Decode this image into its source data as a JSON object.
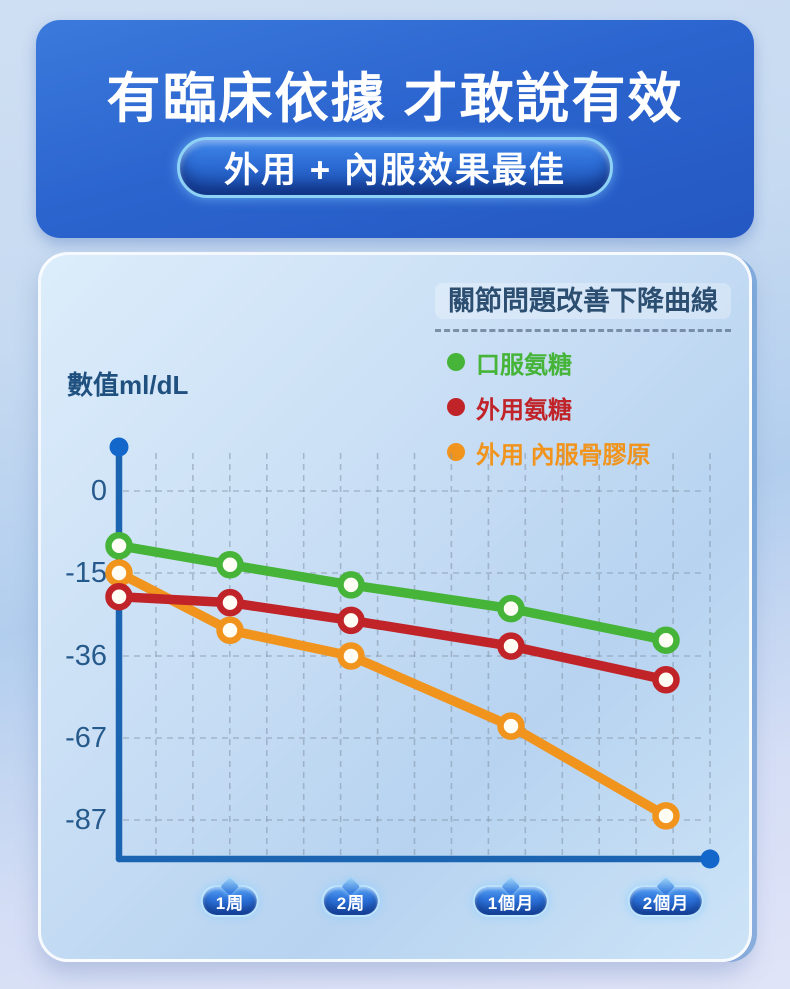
{
  "banner": {
    "title": "有臨床依據 才敢說有效",
    "pill": "外用 + 內服效果最佳"
  },
  "colors": {
    "banner_blue": "#2c65cf",
    "axis_blue": "#1b64b2",
    "axis_dot_blue": "#1467ca",
    "grid_gray": "#8395a9",
    "label_navy": "#275a8c",
    "title_navy": "#2b4e71",
    "point_center": "#fffdf4",
    "series_green": "#45b438",
    "series_red": "#c02328",
    "series_orange": "#f0941d"
  },
  "chart_data": {
    "type": "line",
    "title": "關節問題改善下降曲線",
    "ylabel": "數值ml/dL",
    "x_axis_labels": [
      "1周",
      "2周",
      "1個月",
      "2個月"
    ],
    "y_ticks": [
      0,
      -15,
      -36,
      -67,
      -87
    ],
    "grid": "dashed",
    "legend_position": "top-right",
    "note": "first point of each series sits on the y-axis before the 1周 column",
    "series": [
      {
        "name": "口服氨糖",
        "color": "#45b438",
        "values": [
          -10,
          -13.5,
          -18,
          -24,
          -32
        ]
      },
      {
        "name": "外用氨糖",
        "color": "#c02328",
        "values": [
          -21,
          -22.5,
          -27,
          -33.5,
          -45
        ]
      },
      {
        "name": "外用 內服骨膠原",
        "color": "#f0941d",
        "values": [
          -15,
          -29.5,
          -36,
          -62.5,
          -86
        ]
      }
    ]
  }
}
